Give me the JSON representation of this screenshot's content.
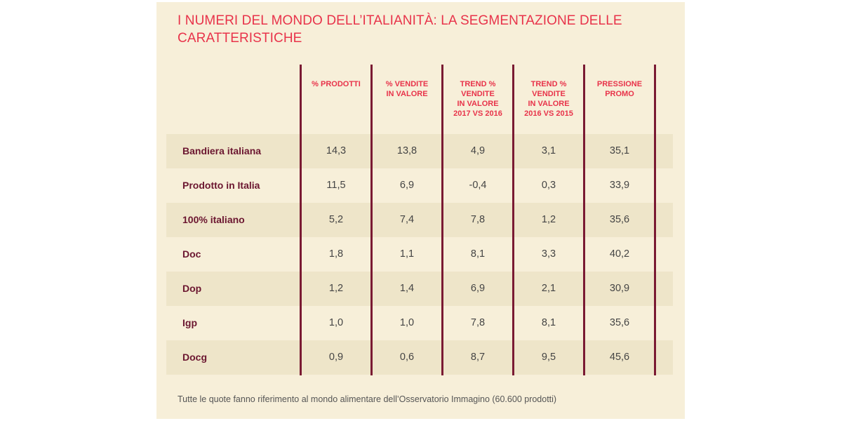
{
  "title": "I NUMERI DEL MONDO DELL’ITALIANITÀ: LA SEGMENTAZIONE DELLE CARATTERISTICHE",
  "note": "Tutte le quote fanno riferimento al mondo alimentare dell’Osservatorio Immagino (60.600 prodotti)",
  "colors": {
    "title": "#e8334a",
    "row_label": "#6b1630",
    "divider": "#7a1a33",
    "background": "#f7efd9",
    "stripe": "#eee5c9"
  },
  "chart_data": {
    "type": "table",
    "columns": [
      "% PRODOTTI",
      "% VENDITE\nIN VALORE",
      "TREND %\nVENDITE\nIN VALORE\n2017 VS 2016",
      "TREND %\nVENDITE\nIN VALORE\n2016 VS 2015",
      "PRESSIONE\nPROMO"
    ],
    "rows": [
      {
        "label": "Bandiera italiana",
        "values": [
          "14,3",
          "13,8",
          "4,9",
          "3,1",
          "35,1"
        ]
      },
      {
        "label": "Prodotto in Italia",
        "values": [
          "11,5",
          "6,9",
          "-0,4",
          "0,3",
          "33,9"
        ]
      },
      {
        "label": "100% italiano",
        "values": [
          "5,2",
          "7,4",
          "7,8",
          "1,2",
          "35,6"
        ]
      },
      {
        "label": "Doc",
        "values": [
          "1,8",
          "1,1",
          "8,1",
          "3,3",
          "40,2"
        ]
      },
      {
        "label": "Dop",
        "values": [
          "1,2",
          "1,4",
          "6,9",
          "2,1",
          "30,9"
        ]
      },
      {
        "label": "Igp",
        "values": [
          "1,0",
          "1,0",
          "7,8",
          "8,1",
          "35,6"
        ]
      },
      {
        "label": "Docg",
        "values": [
          "0,9",
          "0,6",
          "8,7",
          "9,5",
          "45,6"
        ]
      }
    ]
  }
}
